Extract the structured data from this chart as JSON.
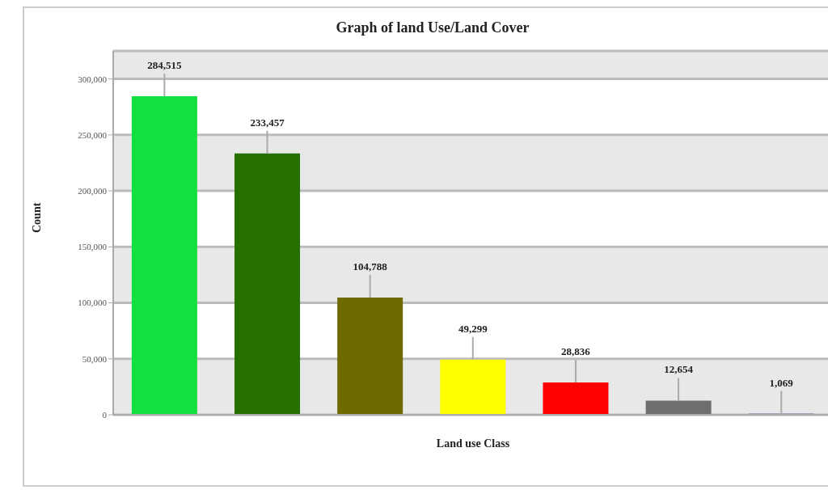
{
  "chart_data": {
    "type": "bar",
    "title": "Graph of land Use/Land Cover",
    "xlabel": "Land use Class",
    "ylabel": "Count",
    "categories": [
      null,
      null,
      null,
      null,
      null,
      null,
      null
    ],
    "values": [
      284515,
      233457,
      104788,
      49299,
      28836,
      12654,
      1069
    ],
    "colors": [
      "#12e040",
      "#267000",
      "#6e6a00",
      "#ffff00",
      "#ff0000",
      "#6e6e6e",
      "#6a7a9a"
    ],
    "value_labels": [
      "284,515",
      "233,457",
      "104,788",
      "49,299",
      "28,836",
      "12,654",
      "1,069"
    ],
    "ylim": [
      0,
      325000
    ],
    "yticks": [
      0,
      {
        "value": 50000,
        "label": "50,000"
      },
      {
        "value": 100000,
        "label": "100,000"
      },
      {
        "value": 150000,
        "label": "150,000"
      },
      {
        "value": 200000,
        "label": "200,000"
      },
      {
        "value": 250000,
        "label": "250,000"
      },
      {
        "value": 300000,
        "label": "300,000"
      }
    ],
    "grid": "y"
  }
}
